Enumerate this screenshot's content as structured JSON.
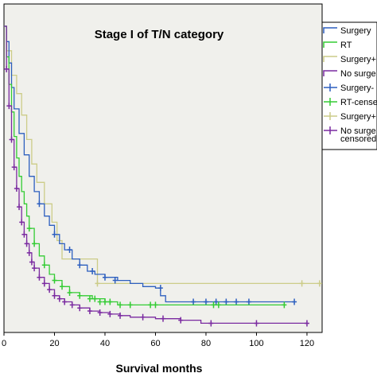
{
  "chart_data": {
    "type": "line",
    "subtype": "kaplan-meier",
    "title": "Stage I of T/N category",
    "xlabel": "Survival months",
    "ylabel": "",
    "xlim": [
      0,
      126
    ],
    "ylim": [
      0,
      1.0
    ],
    "xticks": [
      0,
      20,
      40,
      60,
      80,
      100,
      120
    ],
    "grid": false,
    "legend_position": "right",
    "legend": [
      {
        "label": "Surgery",
        "color": "#2d5fbf",
        "kind": "line"
      },
      {
        "label": "RT",
        "color": "#33cc33",
        "kind": "line"
      },
      {
        "label": "Surgery+",
        "color": "#cccc88",
        "kind": "line"
      },
      {
        "label": "No surge",
        "color": "#7a2aa0",
        "kind": "line"
      },
      {
        "label": "Surgery-",
        "color": "#2d5fbf",
        "kind": "censor"
      },
      {
        "label": "RT-cense",
        "color": "#33cc33",
        "kind": "censor"
      },
      {
        "label": "Surgery+",
        "color": "#cccc88",
        "kind": "censor"
      },
      {
        "label": "No surge\ncensored",
        "color": "#7a2aa0",
        "kind": "censor"
      }
    ],
    "series": [
      {
        "color": "#cccc88",
        "x": [
          0,
          1,
          3,
          5,
          7,
          9,
          11,
          13,
          16,
          19,
          21,
          23,
          37,
          125
        ],
        "y": [
          1.0,
          0.92,
          0.84,
          0.78,
          0.71,
          0.63,
          0.55,
          0.49,
          0.42,
          0.36,
          0.3,
          0.24,
          0.16,
          0.16
        ],
        "censored": [
          {
            "x": 37,
            "y": 0.16
          },
          {
            "x": 118,
            "y": 0.16
          },
          {
            "x": 125,
            "y": 0.16
          }
        ]
      },
      {
        "color": "#2d5fbf",
        "x": [
          0,
          1,
          2,
          3,
          4,
          6,
          8,
          10,
          12,
          14,
          16,
          18,
          20,
          22,
          24,
          27,
          30,
          33,
          36,
          40,
          45,
          50,
          55,
          60,
          62,
          64,
          115
        ],
        "y": [
          1.0,
          0.95,
          0.88,
          0.8,
          0.73,
          0.65,
          0.58,
          0.51,
          0.46,
          0.42,
          0.38,
          0.35,
          0.32,
          0.29,
          0.27,
          0.24,
          0.22,
          0.2,
          0.19,
          0.18,
          0.17,
          0.16,
          0.15,
          0.145,
          0.12,
          0.1,
          0.1
        ],
        "censored": [
          {
            "x": 14,
            "y": 0.42
          },
          {
            "x": 20,
            "y": 0.32
          },
          {
            "x": 26,
            "y": 0.27
          },
          {
            "x": 30,
            "y": 0.22
          },
          {
            "x": 35,
            "y": 0.2
          },
          {
            "x": 40,
            "y": 0.18
          },
          {
            "x": 44,
            "y": 0.17
          },
          {
            "x": 62,
            "y": 0.145
          },
          {
            "x": 75,
            "y": 0.1
          },
          {
            "x": 80,
            "y": 0.1
          },
          {
            "x": 84,
            "y": 0.1
          },
          {
            "x": 88,
            "y": 0.1
          },
          {
            "x": 92,
            "y": 0.1
          },
          {
            "x": 97,
            "y": 0.1
          },
          {
            "x": 115,
            "y": 0.1
          }
        ]
      },
      {
        "color": "#33cc33",
        "x": [
          0,
          1,
          2,
          3,
          4,
          5,
          6,
          7,
          8,
          9,
          10,
          12,
          14,
          16,
          18,
          20,
          23,
          26,
          30,
          35,
          40,
          45,
          111
        ],
        "y": [
          1.0,
          0.9,
          0.81,
          0.72,
          0.64,
          0.57,
          0.51,
          0.46,
          0.42,
          0.38,
          0.34,
          0.29,
          0.25,
          0.22,
          0.19,
          0.17,
          0.15,
          0.13,
          0.12,
          0.11,
          0.1,
          0.09,
          0.09
        ],
        "censored": [
          {
            "x": 10,
            "y": 0.34
          },
          {
            "x": 12,
            "y": 0.29
          },
          {
            "x": 16,
            "y": 0.22
          },
          {
            "x": 20,
            "y": 0.17
          },
          {
            "x": 23,
            "y": 0.15
          },
          {
            "x": 26,
            "y": 0.13
          },
          {
            "x": 30,
            "y": 0.12
          },
          {
            "x": 34,
            "y": 0.11
          },
          {
            "x": 36,
            "y": 0.11
          },
          {
            "x": 38,
            "y": 0.1
          },
          {
            "x": 40,
            "y": 0.1
          },
          {
            "x": 42,
            "y": 0.1
          },
          {
            "x": 46,
            "y": 0.09
          },
          {
            "x": 50,
            "y": 0.09
          },
          {
            "x": 58,
            "y": 0.09
          },
          {
            "x": 60,
            "y": 0.09
          },
          {
            "x": 83,
            "y": 0.09
          },
          {
            "x": 85,
            "y": 0.09
          },
          {
            "x": 111,
            "y": 0.09
          }
        ]
      },
      {
        "color": "#7a2aa0",
        "x": [
          0,
          1,
          2,
          3,
          4,
          5,
          6,
          7,
          8,
          9,
          10,
          11,
          12,
          14,
          16,
          18,
          20,
          22,
          24,
          27,
          30,
          34,
          38,
          42,
          46,
          50,
          60,
          70,
          78,
          100,
          120
        ],
        "y": [
          1.0,
          0.86,
          0.74,
          0.63,
          0.54,
          0.47,
          0.41,
          0.36,
          0.32,
          0.29,
          0.26,
          0.23,
          0.21,
          0.18,
          0.16,
          0.14,
          0.12,
          0.11,
          0.1,
          0.09,
          0.08,
          0.07,
          0.065,
          0.06,
          0.055,
          0.05,
          0.045,
          0.04,
          0.03,
          0.03,
          0.03
        ],
        "censored": [
          {
            "x": 1,
            "y": 0.86
          },
          {
            "x": 2,
            "y": 0.74
          },
          {
            "x": 3,
            "y": 0.63
          },
          {
            "x": 4,
            "y": 0.54
          },
          {
            "x": 5,
            "y": 0.47
          },
          {
            "x": 6,
            "y": 0.41
          },
          {
            "x": 7,
            "y": 0.36
          },
          {
            "x": 8,
            "y": 0.32
          },
          {
            "x": 9,
            "y": 0.29
          },
          {
            "x": 10,
            "y": 0.26
          },
          {
            "x": 11,
            "y": 0.23
          },
          {
            "x": 12,
            "y": 0.21
          },
          {
            "x": 14,
            "y": 0.18
          },
          {
            "x": 16,
            "y": 0.16
          },
          {
            "x": 18,
            "y": 0.14
          },
          {
            "x": 20,
            "y": 0.12
          },
          {
            "x": 22,
            "y": 0.11
          },
          {
            "x": 24,
            "y": 0.1
          },
          {
            "x": 27,
            "y": 0.09
          },
          {
            "x": 30,
            "y": 0.08
          },
          {
            "x": 34,
            "y": 0.07
          },
          {
            "x": 38,
            "y": 0.065
          },
          {
            "x": 42,
            "y": 0.06
          },
          {
            "x": 46,
            "y": 0.055
          },
          {
            "x": 55,
            "y": 0.05
          },
          {
            "x": 63,
            "y": 0.045
          },
          {
            "x": 70,
            "y": 0.04
          },
          {
            "x": 82,
            "y": 0.03
          },
          {
            "x": 100,
            "y": 0.03
          },
          {
            "x": 120,
            "y": 0.03
          }
        ]
      }
    ]
  }
}
